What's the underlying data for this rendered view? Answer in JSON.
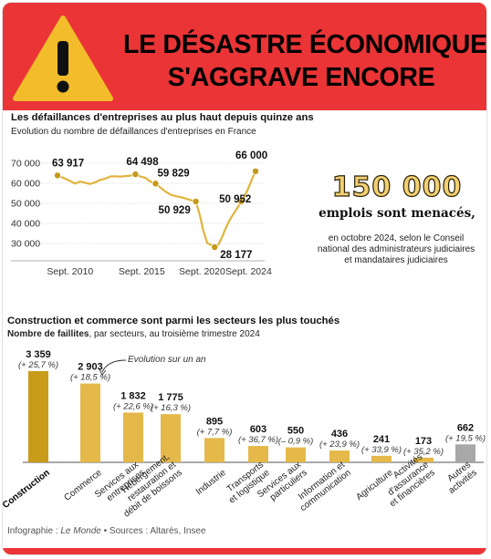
{
  "banner": {
    "headline_line1": "LE DÉSASTRE ÉCONOMIQUE",
    "headline_line2": "S'AGGRAVE ENCORE",
    "icon": "warning-triangle-icon",
    "colors": {
      "banner": "#ea3436",
      "triangle": "#f2bc2a",
      "accent_gold": "#e4b94a",
      "dark_gold": "#c99b18",
      "grey": "#a8a8a8"
    }
  },
  "highlight": {
    "number": "150 000",
    "subtitle": "emplois sont menacés,",
    "description": "en octobre 2024, selon le Conseil national des administrateurs judiciaires et mandataires judiciaires"
  },
  "source": {
    "prefix": "Infographie : ",
    "publication": "Le Monde",
    "rest": " • Sources : Altarès, Insee"
  },
  "chart_data": [
    {
      "type": "line",
      "title": "Les défaillances d'entreprises au plus haut depuis quinze ans",
      "subtitle": "Evolution du nombre de défaillances d'entreprises en France",
      "x_ticks": [
        "Sept. 2010",
        "Sept. 2015",
        "Sept. 2020",
        "Sept. 2024"
      ],
      "y_ticks": [
        "70 000",
        "60 000",
        "50 000",
        "40 000",
        "30 000"
      ],
      "ylim": [
        25000,
        72000
      ],
      "grid": true,
      "x": [
        2009.0,
        2009.5,
        2010.0,
        2010.4,
        2010.8,
        2011.2,
        2011.6,
        2012.0,
        2012.4,
        2012.8,
        2013.2,
        2013.6,
        2014.0,
        2014.4,
        2014.8,
        2015.2,
        2015.6,
        2016.0,
        2016.4,
        2016.8,
        2017.2,
        2017.6,
        2018.0,
        2018.4,
        2018.8,
        2019.2,
        2019.6,
        2020.0,
        2020.3,
        2020.6,
        2020.9,
        2021.2,
        2021.5,
        2021.8,
        2022.1,
        2022.4,
        2022.7,
        2023.0,
        2023.3,
        2023.6,
        2023.9,
        2024.2,
        2024.5,
        2024.75
      ],
      "y": [
        63917,
        62600,
        61200,
        59800,
        60900,
        60200,
        59700,
        60500,
        61700,
        62300,
        63400,
        63500,
        63300,
        63600,
        63800,
        64498,
        63400,
        62700,
        60800,
        59829,
        57800,
        55800,
        54300,
        53600,
        53100,
        52400,
        51600,
        50929,
        44500,
        36400,
        30300,
        29300,
        28177,
        29500,
        33300,
        37900,
        41800,
        44800,
        47600,
        50952,
        53800,
        57900,
        62600,
        66000
      ],
      "markers": [
        {
          "x": 2009.0,
          "y": 63917,
          "label": "63 917",
          "bold": true
        },
        {
          "x": 2015.2,
          "y": 64498,
          "label": "64 498",
          "bold": true
        },
        {
          "x": 2016.8,
          "y": 59829,
          "label": "59 829",
          "bold": true
        },
        {
          "x": 2020.0,
          "y": 50929,
          "label": "50 929",
          "bold": true
        },
        {
          "x": 2021.5,
          "y": 28177,
          "label": "28 177",
          "bold": true
        },
        {
          "x": 2023.6,
          "y": 50952,
          "label": "50 952",
          "bold": true
        },
        {
          "x": 2024.75,
          "y": 66000,
          "label": "66 000",
          "bold": true
        }
      ]
    },
    {
      "type": "bar",
      "title": "Construction et commerce sont parmi les secteurs les plus touchés",
      "subtitle_bold": "Nombre de faillites",
      "subtitle_rest": ", par secteurs, au troisième trimestre 2024",
      "annotation": "Evolution sur un an",
      "ylim": [
        0,
        3600
      ],
      "categories": [
        [
          "Construction"
        ],
        [
          "Commerce"
        ],
        [
          "Services aux",
          "entreprises"
        ],
        [
          "Hébergement,",
          "restauration et",
          "débit de boissons"
        ],
        [
          "Industrie"
        ],
        [
          "Transports",
          "et logistique"
        ],
        [
          "Services aux",
          "particuliers"
        ],
        [
          "Information et",
          "communication"
        ],
        [
          "Agriculture"
        ],
        [
          "Activités",
          "d'assurance",
          "et financières"
        ],
        [
          "Autres",
          "activités"
        ]
      ],
      "values": [
        3359,
        2903,
        1832,
        1775,
        895,
        603,
        550,
        436,
        241,
        173,
        662
      ],
      "value_labels": [
        "3 359",
        "2 903",
        "1 832",
        "1 775",
        "895",
        "603",
        "550",
        "436",
        "241",
        "173",
        "662"
      ],
      "changes": [
        "(+ 25,7 %)",
        "(+ 18,5 %)",
        "(+ 22,6 %)",
        "(+ 16,3 %)",
        "(+ 7,7 %)",
        "(+ 36,7 %)",
        "(– 0,9 %)",
        "(+ 23,9 %)",
        "(+ 33,9 %)",
        "(+ 35,2 %)",
        "(+ 19,5 %)"
      ],
      "colors": [
        "#c99b18",
        "#e4b94a",
        "#e4b94a",
        "#e4b94a",
        "#e4b94a",
        "#e4b94a",
        "#e4b94a",
        "#e4b94a",
        "#e4b94a",
        "#e4b94a",
        "#a8a8a8"
      ],
      "bold_category": "Construction"
    }
  ]
}
